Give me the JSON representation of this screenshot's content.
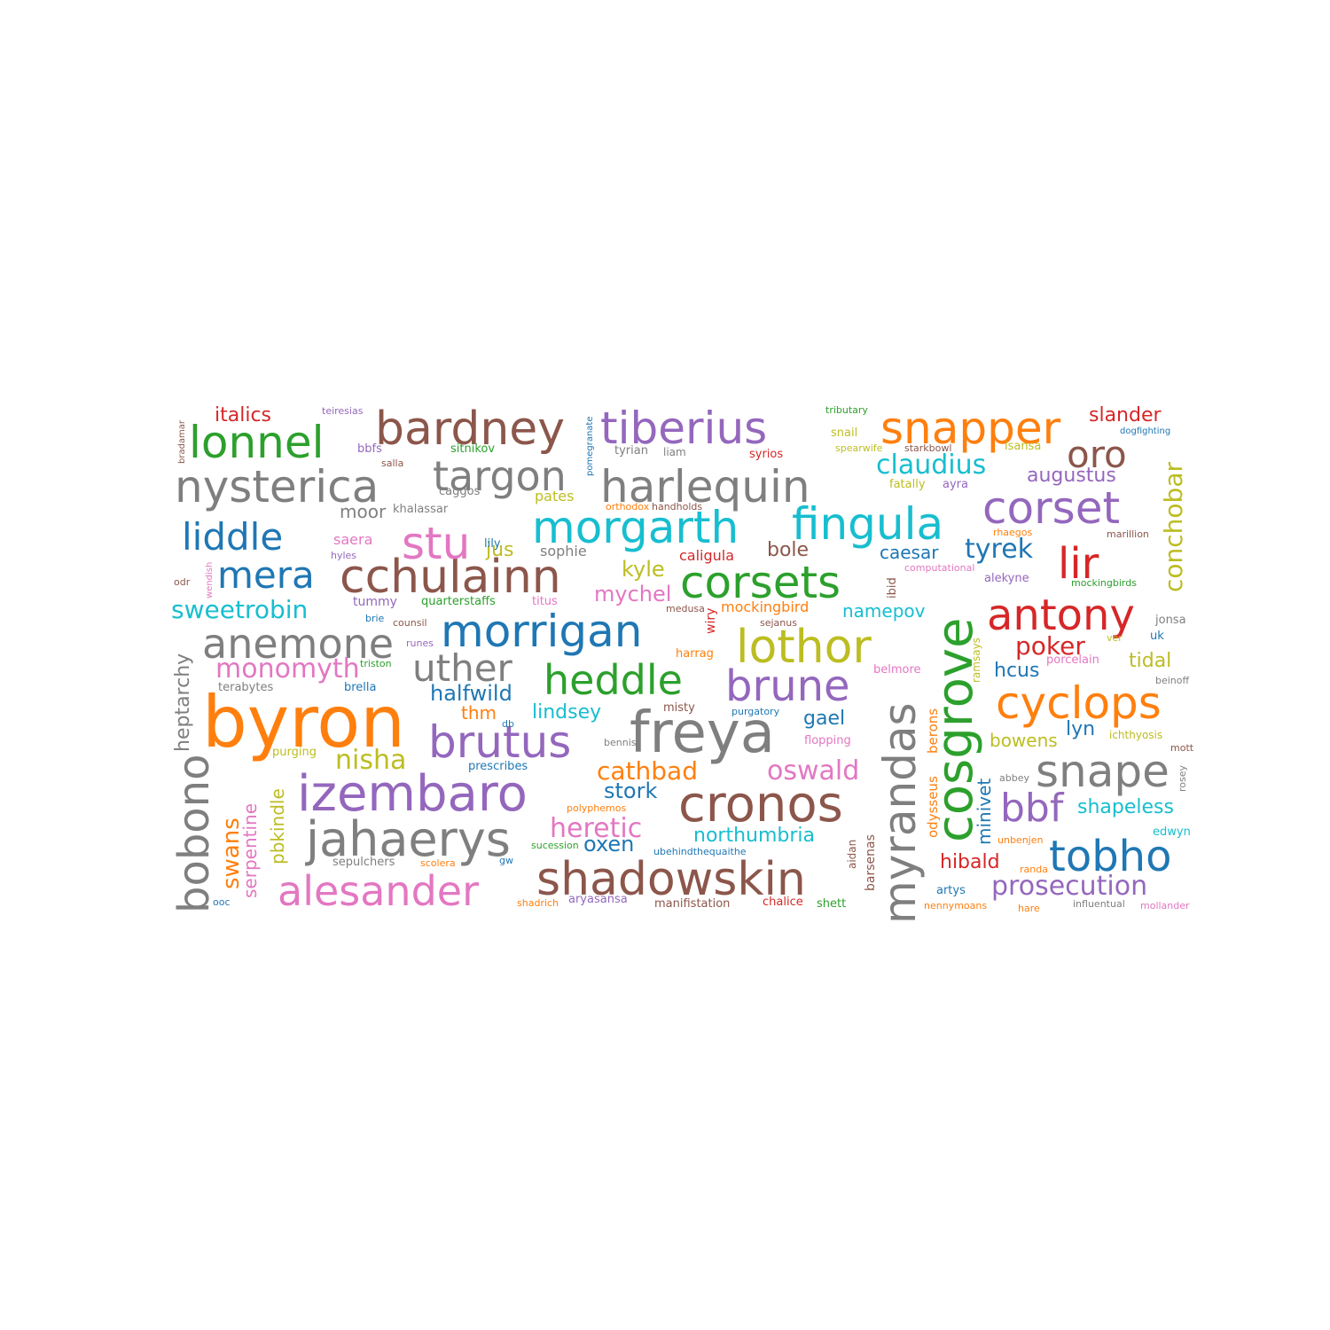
{
  "palette": {
    "blue": "#1f77b4",
    "orange": "#ff7f0e",
    "green": "#2ca02c",
    "red": "#d62728",
    "purple": "#9467bd",
    "brown": "#8c564b",
    "pink": "#e377c2",
    "gray": "#7f7f7f",
    "olive": "#bcbd22",
    "cyan": "#17becf"
  },
  "words": [
    {
      "text": "byron",
      "color": "orange"
    },
    {
      "text": "freya",
      "color": "gray"
    },
    {
      "text": "cosgrove",
      "color": "green"
    },
    {
      "text": "myrandas",
      "color": "gray"
    },
    {
      "text": "shadowskin",
      "color": "brown"
    },
    {
      "text": "izembaro",
      "color": "purple"
    },
    {
      "text": "jahaerys",
      "color": "gray"
    },
    {
      "text": "cronos",
      "color": "brown"
    },
    {
      "text": "bobono",
      "color": "gray"
    },
    {
      "text": "morrigan",
      "color": "blue"
    },
    {
      "text": "brutus",
      "color": "purple"
    },
    {
      "text": "cchulainn",
      "color": "brown"
    },
    {
      "text": "alesander",
      "color": "pink"
    },
    {
      "text": "nysterica",
      "color": "gray"
    },
    {
      "text": "harlequin",
      "color": "gray"
    },
    {
      "text": "bardney",
      "color": "brown"
    },
    {
      "text": "tiberius",
      "color": "purple"
    },
    {
      "text": "lothor",
      "color": "olive"
    },
    {
      "text": "morgarth",
      "color": "cyan"
    },
    {
      "text": "fingula",
      "color": "cyan"
    },
    {
      "text": "snapper",
      "color": "orange"
    },
    {
      "text": "corset",
      "color": "purple"
    },
    {
      "text": "lonnel",
      "color": "green"
    },
    {
      "text": "targon",
      "color": "gray"
    },
    {
      "text": "corsets",
      "color": "green"
    },
    {
      "text": "heddle",
      "color": "green"
    },
    {
      "text": "brune",
      "color": "purple"
    },
    {
      "text": "antony",
      "color": "red"
    },
    {
      "text": "cyclops",
      "color": "orange"
    },
    {
      "text": "anemone",
      "color": "gray"
    },
    {
      "text": "uther",
      "color": "gray"
    },
    {
      "text": "snape",
      "color": "gray"
    },
    {
      "text": "tobho",
      "color": "blue"
    },
    {
      "text": "stu",
      "color": "pink"
    },
    {
      "text": "liddle",
      "color": "blue"
    },
    {
      "text": "mera",
      "color": "blue"
    },
    {
      "text": "lir",
      "color": "red"
    },
    {
      "text": "oro",
      "color": "brown"
    },
    {
      "text": "bbf",
      "color": "purple"
    },
    {
      "text": "conchobar",
      "color": "olive"
    },
    {
      "text": "prosecution",
      "color": "purple"
    },
    {
      "text": "sweetrobin",
      "color": "cyan"
    },
    {
      "text": "claudius",
      "color": "cyan"
    },
    {
      "text": "heptarchy",
      "color": "gray"
    },
    {
      "text": "monomyth",
      "color": "pink"
    },
    {
      "text": "nisha",
      "color": "olive"
    },
    {
      "text": "cathbad",
      "color": "orange"
    },
    {
      "text": "oswald",
      "color": "pink"
    },
    {
      "text": "heretic",
      "color": "pink"
    },
    {
      "text": "swans",
      "color": "orange"
    },
    {
      "text": "serpentine",
      "color": "pink"
    },
    {
      "text": "pbkindle",
      "color": "olive"
    },
    {
      "text": "minivet",
      "color": "blue"
    },
    {
      "text": "poker",
      "color": "red"
    },
    {
      "text": "tyrek",
      "color": "blue"
    },
    {
      "text": "slander",
      "color": "red"
    },
    {
      "text": "italics",
      "color": "red"
    },
    {
      "text": "augustus",
      "color": "purple"
    },
    {
      "text": "hcus",
      "color": "blue"
    },
    {
      "text": "hibald",
      "color": "red"
    },
    {
      "text": "halfwild",
      "color": "blue"
    },
    {
      "text": "lindsey",
      "color": "cyan"
    },
    {
      "text": "stork",
      "color": "blue"
    },
    {
      "text": "oxen",
      "color": "blue"
    },
    {
      "text": "northumbria",
      "color": "cyan"
    },
    {
      "text": "mychel",
      "color": "pink"
    },
    {
      "text": "kyle",
      "color": "olive"
    },
    {
      "text": "jus",
      "color": "olive"
    },
    {
      "text": "thm",
      "color": "orange"
    },
    {
      "text": "namepov",
      "color": "cyan"
    },
    {
      "text": "tidal",
      "color": "olive"
    },
    {
      "text": "bowens",
      "color": "olive"
    },
    {
      "text": "lyn",
      "color": "blue"
    },
    {
      "text": "shapeless",
      "color": "cyan"
    },
    {
      "text": "gael",
      "color": "blue"
    },
    {
      "text": "caesar",
      "color": "blue"
    },
    {
      "text": "bole",
      "color": "brown"
    },
    {
      "text": "moor",
      "color": "gray"
    },
    {
      "text": "odysseus",
      "color": "orange"
    },
    {
      "text": "berons",
      "color": "orange"
    },
    {
      "text": "barsenas",
      "color": "brown"
    },
    {
      "text": "aidan",
      "color": "brown"
    },
    {
      "text": "wiry",
      "color": "red"
    },
    {
      "text": "ibid",
      "color": "brown"
    },
    {
      "text": "ramsays",
      "color": "olive"
    },
    {
      "text": "pates",
      "color": "olive"
    },
    {
      "text": "caligula",
      "color": "red"
    },
    {
      "text": "mockingbird",
      "color": "orange"
    },
    {
      "text": "sophie",
      "color": "gray"
    },
    {
      "text": "quarterstaffs",
      "color": "green"
    },
    {
      "text": "tummy",
      "color": "purple"
    },
    {
      "text": "saera",
      "color": "pink"
    },
    {
      "text": "teiresias",
      "color": "purple"
    },
    {
      "text": "bradamar",
      "color": "brown"
    },
    {
      "text": "bbfs",
      "color": "purple"
    },
    {
      "text": "salla",
      "color": "brown"
    },
    {
      "text": "caggos",
      "color": "gray"
    },
    {
      "text": "khalassar",
      "color": "gray"
    },
    {
      "text": "sitnikov",
      "color": "green"
    },
    {
      "text": "pomegranate",
      "color": "blue"
    },
    {
      "text": "tyrian",
      "color": "gray"
    },
    {
      "text": "liam",
      "color": "gray"
    },
    {
      "text": "syrios",
      "color": "red"
    },
    {
      "text": "tributary",
      "color": "green"
    },
    {
      "text": "snail",
      "color": "olive"
    },
    {
      "text": "spearwife",
      "color": "olive"
    },
    {
      "text": "starkbowl",
      "color": "brown"
    },
    {
      "text": "isansa",
      "color": "olive"
    },
    {
      "text": "dogfighting",
      "color": "blue"
    },
    {
      "text": "fatally",
      "color": "olive"
    },
    {
      "text": "ayra",
      "color": "purple"
    },
    {
      "text": "orthodox",
      "color": "orange"
    },
    {
      "text": "handholds",
      "color": "brown"
    },
    {
      "text": "rhaegos",
      "color": "orange"
    },
    {
      "text": "marillion",
      "color": "brown"
    },
    {
      "text": "lily",
      "color": "blue"
    },
    {
      "text": "hyles",
      "color": "purple"
    },
    {
      "text": "wendish",
      "color": "pink"
    },
    {
      "text": "odr",
      "color": "brown"
    },
    {
      "text": "computational",
      "color": "pink"
    },
    {
      "text": "alekyne",
      "color": "purple"
    },
    {
      "text": "mockingbirds",
      "color": "green"
    },
    {
      "text": "brie",
      "color": "blue"
    },
    {
      "text": "counsil",
      "color": "brown"
    },
    {
      "text": "titus",
      "color": "pink"
    },
    {
      "text": "medusa",
      "color": "brown"
    },
    {
      "text": "sejanus",
      "color": "brown"
    },
    {
      "text": "jonsa",
      "color": "gray"
    },
    {
      "text": "runes",
      "color": "purple"
    },
    {
      "text": "ver",
      "color": "olive"
    },
    {
      "text": "uk",
      "color": "blue"
    },
    {
      "text": "harrag",
      "color": "orange"
    },
    {
      "text": "porcelain",
      "color": "pink"
    },
    {
      "text": "triston",
      "color": "green"
    },
    {
      "text": "brella",
      "color": "blue"
    },
    {
      "text": "terabytes",
      "color": "gray"
    },
    {
      "text": "belmore",
      "color": "pink"
    },
    {
      "text": "beinoff",
      "color": "gray"
    },
    {
      "text": "misty",
      "color": "brown"
    },
    {
      "text": "purgatory",
      "color": "blue"
    },
    {
      "text": "db",
      "color": "blue"
    },
    {
      "text": "ichthyosis",
      "color": "olive"
    },
    {
      "text": "bennis",
      "color": "gray"
    },
    {
      "text": "flopping",
      "color": "pink"
    },
    {
      "text": "mott",
      "color": "brown"
    },
    {
      "text": "purging",
      "color": "olive"
    },
    {
      "text": "prescribes",
      "color": "blue"
    },
    {
      "text": "abbey",
      "color": "gray"
    },
    {
      "text": "rosey",
      "color": "gray"
    },
    {
      "text": "polyphemos",
      "color": "orange"
    },
    {
      "text": "edwyn",
      "color": "cyan"
    },
    {
      "text": "unbenjen",
      "color": "orange"
    },
    {
      "text": "sucession",
      "color": "green"
    },
    {
      "text": "ubehindthequaithe",
      "color": "blue"
    },
    {
      "text": "sepulchers",
      "color": "gray"
    },
    {
      "text": "scolera",
      "color": "orange"
    },
    {
      "text": "gw",
      "color": "blue"
    },
    {
      "text": "randa",
      "color": "orange"
    },
    {
      "text": "artys",
      "color": "blue"
    },
    {
      "text": "ooc",
      "color": "blue"
    },
    {
      "text": "shadrich",
      "color": "orange"
    },
    {
      "text": "aryasansa",
      "color": "purple"
    },
    {
      "text": "manifistation",
      "color": "brown"
    },
    {
      "text": "chalice",
      "color": "red"
    },
    {
      "text": "shett",
      "color": "green"
    },
    {
      "text": "nennymoans",
      "color": "orange"
    },
    {
      "text": "hare",
      "color": "orange"
    },
    {
      "text": "influentual",
      "color": "gray"
    },
    {
      "text": "mollander",
      "color": "pink"
    }
  ]
}
